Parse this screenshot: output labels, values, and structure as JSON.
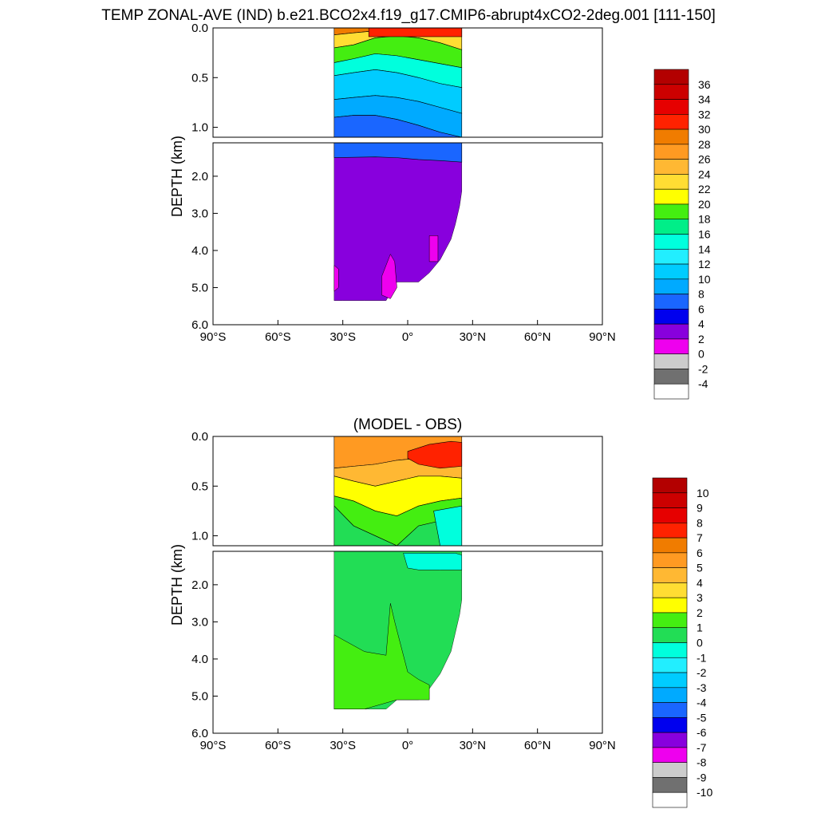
{
  "page_title": "TEMP ZONAL-AVE (IND) b.e21.BCO2x4.f19_g17.CMIP6-abrupt4xCO2-2deg.001 [111-150]",
  "chart_data": [
    {
      "type": "heatmap",
      "title": "",
      "ylabel": "DEPTH (km)",
      "xlabel": "",
      "xlim": [
        -90,
        90
      ],
      "ylim": [
        6.0,
        0.0
      ],
      "depth_break_km": 1.1,
      "x_ticks": [
        -90,
        -60,
        -30,
        0,
        30,
        60,
        90
      ],
      "x_tick_labels": [
        "90°S",
        "60°S",
        "30°S",
        "0°",
        "30°N",
        "60°N",
        "90°N"
      ],
      "y_ticks_upper": [
        0.0,
        0.5,
        1.0
      ],
      "y_ticks_upper_labels": [
        "0.0",
        "0.5",
        "1.0"
      ],
      "y_ticks_lower": [
        2.0,
        3.0,
        4.0,
        5.0,
        6.0
      ],
      "y_ticks_lower_labels": [
        "2.0",
        "3.0",
        "4.0",
        "5.0",
        "6.0"
      ],
      "data_lat_range": [
        -34,
        25
      ],
      "colorbar": {
        "labels": [
          "36",
          "34",
          "32",
          "30",
          "28",
          "26",
          "24",
          "22",
          "20",
          "18",
          "16",
          "14",
          "12",
          "10",
          "8",
          "6",
          "4",
          "2",
          "0",
          "-2",
          "-4"
        ],
        "colors": [
          "#b30000",
          "#cc0000",
          "#e60000",
          "#ff2200",
          "#f07c00",
          "#ff9a22",
          "#ffb833",
          "#ffdd33",
          "#ffff00",
          "#44ee11",
          "#00ee88",
          "#00ffdd",
          "#22eeff",
          "#00ccff",
          "#00aaff",
          "#1a66ff",
          "#0000ee",
          "#8800dd",
          "#ee00ee",
          "#cccccc",
          "#707070",
          "#ffffff"
        ]
      },
      "upper_bands": [
        {
          "value": 28,
          "surface": [
            0.0,
            0.0,
            0.0,
            0.0,
            0.0,
            0.0,
            0.0
          ],
          "deep": [
            0.07,
            0.05,
            0.03,
            0.02,
            0.02,
            0.03,
            0.04
          ]
        },
        {
          "value": 22,
          "surface": [
            0.07,
            0.05,
            0.03,
            0.02,
            0.02,
            0.03,
            0.04
          ],
          "deep": [
            0.2,
            0.17,
            0.1,
            0.08,
            0.1,
            0.15,
            0.22
          ]
        },
        {
          "value": 18,
          "surface": [
            0.2,
            0.17,
            0.1,
            0.08,
            0.1,
            0.15,
            0.22
          ],
          "deep": [
            0.35,
            0.31,
            0.26,
            0.28,
            0.32,
            0.36,
            0.4
          ]
        },
        {
          "value": 14,
          "surface": [
            0.35,
            0.31,
            0.26,
            0.28,
            0.32,
            0.36,
            0.4
          ],
          "deep": [
            0.48,
            0.45,
            0.42,
            0.45,
            0.5,
            0.56,
            0.6
          ]
        },
        {
          "value": 10,
          "surface": [
            0.48,
            0.45,
            0.42,
            0.45,
            0.5,
            0.56,
            0.6
          ],
          "deep": [
            0.72,
            0.7,
            0.68,
            0.7,
            0.74,
            0.8,
            0.86
          ]
        },
        {
          "value": 8,
          "surface": [
            0.72,
            0.7,
            0.68,
            0.7,
            0.74,
            0.8,
            0.86
          ],
          "deep": [
            0.9,
            0.88,
            0.88,
            0.92,
            0.98,
            1.05,
            1.1
          ]
        },
        {
          "value": 6,
          "surface": [
            0.9,
            0.88,
            0.88,
            0.92,
            0.98,
            1.05,
            1.1
          ],
          "deep": [
            1.1,
            1.1,
            1.1,
            1.1,
            1.1,
            1.1,
            1.1
          ]
        }
      ],
      "upper_band_lats": [
        -34,
        -25,
        -15,
        -5,
        5,
        15,
        25
      ],
      "surface_warm_patch": {
        "value": 30,
        "lat_range": [
          -18,
          25
        ],
        "depth_max_km": 0.04
      },
      "deep_fill": {
        "value": 2,
        "lat": [
          -34,
          -30,
          -20,
          -10,
          -5,
          0,
          5,
          10,
          15,
          20,
          22,
          24,
          25
        ],
        "bottom_km": [
          5.35,
          5.35,
          5.35,
          5.35,
          4.85,
          4.85,
          4.85,
          4.6,
          4.25,
          3.7,
          3.3,
          2.8,
          2.4
        ]
      },
      "deep_blue_layer": {
        "value": 6,
        "lat": [
          -34,
          -15,
          -5,
          5,
          15,
          25
        ],
        "bottom_km": [
          1.5,
          1.48,
          1.5,
          1.55,
          1.58,
          1.62
        ]
      },
      "cold_patches": [
        {
          "value": 0,
          "lat": [
            -34,
            -32,
            -32,
            -34
          ],
          "depth": [
            4.4,
            4.5,
            5.0,
            5.1
          ]
        },
        {
          "value": 0,
          "lat": [
            -8,
            -6,
            -5,
            -8,
            -12,
            -12
          ],
          "depth": [
            4.1,
            4.3,
            5.0,
            5.3,
            5.2,
            4.7
          ]
        },
        {
          "value": 0,
          "lat": [
            10,
            14,
            14,
            10
          ],
          "depth": [
            3.6,
            3.6,
            4.3,
            4.3
          ]
        }
      ]
    },
    {
      "type": "heatmap",
      "title": "(MODEL - OBS)",
      "ylabel": "DEPTH (km)",
      "xlabel": "",
      "xlim": [
        -90,
        90
      ],
      "ylim": [
        6.0,
        0.0
      ],
      "depth_break_km": 1.1,
      "x_ticks": [
        -90,
        -60,
        -30,
        0,
        30,
        60,
        90
      ],
      "x_tick_labels": [
        "90°S",
        "60°S",
        "30°S",
        "0°",
        "30°N",
        "60°N",
        "90°N"
      ],
      "y_ticks_upper": [
        0.0,
        0.5,
        1.0
      ],
      "y_ticks_upper_labels": [
        "0.0",
        "0.5",
        "1.0"
      ],
      "y_ticks_lower": [
        2.0,
        3.0,
        4.0,
        5.0,
        6.0
      ],
      "y_ticks_lower_labels": [
        "2.0",
        "3.0",
        "4.0",
        "5.0",
        "6.0"
      ],
      "data_lat_range": [
        -34,
        25
      ],
      "colorbar": {
        "labels": [
          "10",
          "9",
          "8",
          "7",
          "6",
          "5",
          "4",
          "3",
          "2",
          "1",
          "0",
          "-1",
          "-2",
          "-3",
          "-4",
          "-5",
          "-6",
          "-7",
          "-8",
          "-9",
          "-10"
        ],
        "colors": [
          "#b30000",
          "#cc0000",
          "#e60000",
          "#ff2200",
          "#f07c00",
          "#ff9a22",
          "#ffb833",
          "#ffdd33",
          "#ffff00",
          "#44ee11",
          "#22dd55",
          "#00ffdd",
          "#22eeff",
          "#00ccff",
          "#00aaff",
          "#1a66ff",
          "#0000ee",
          "#8800dd",
          "#ee00ee",
          "#cccccc",
          "#707070",
          "#ffffff"
        ]
      },
      "upper_bands": [
        {
          "value": 5.5,
          "surface": [
            0.0,
            0.0,
            0.0,
            0.0,
            0.0,
            0.0,
            0.0
          ],
          "deep": [
            0.32,
            0.3,
            0.28,
            0.24,
            0.22,
            0.22,
            0.24
          ]
        },
        {
          "value": 4.5,
          "surface": [
            0.32,
            0.3,
            0.28,
            0.24,
            0.22,
            0.22,
            0.24
          ],
          "deep": [
            0.4,
            0.45,
            0.5,
            0.45,
            0.4,
            0.4,
            0.42
          ]
        },
        {
          "value": 2.5,
          "surface": [
            0.4,
            0.45,
            0.5,
            0.45,
            0.4,
            0.4,
            0.42
          ],
          "deep": [
            0.6,
            0.65,
            0.75,
            0.8,
            0.7,
            0.65,
            0.62
          ]
        },
        {
          "value": 1.5,
          "surface": [
            0.6,
            0.65,
            0.75,
            0.8,
            0.7,
            0.65,
            0.62
          ],
          "deep": [
            0.7,
            0.9,
            1.0,
            1.1,
            0.9,
            0.85,
            0.85
          ]
        },
        {
          "value": 0.5,
          "surface": [
            0.7,
            0.9,
            1.0,
            1.1,
            0.9,
            0.85,
            0.85
          ],
          "deep": [
            1.1,
            1.1,
            1.1,
            1.1,
            1.1,
            1.1,
            1.1
          ]
        }
      ],
      "upper_band_lats": [
        -34,
        -25,
        -15,
        -5,
        5,
        15,
        25
      ],
      "warm_core": {
        "value": 7.5,
        "lat": [
          0,
          10,
          20,
          25,
          25,
          15,
          5,
          0
        ],
        "depth": [
          0.15,
          0.08,
          0.05,
          0.06,
          0.3,
          0.32,
          0.28,
          0.22
        ]
      },
      "cool_patch_upper": {
        "value": -0.5,
        "lat": [
          12,
          25,
          25,
          15
        ],
        "depth": [
          0.75,
          0.7,
          1.1,
          1.1
        ]
      },
      "deep_fill": {
        "value": 0.5,
        "lat": [
          -34,
          -30,
          -20,
          -10,
          -5,
          0,
          5,
          10,
          15,
          20,
          22,
          24,
          25
        ],
        "bottom_km": [
          5.35,
          5.35,
          5.35,
          5.35,
          5.1,
          5.1,
          5.1,
          4.8,
          4.4,
          3.8,
          3.3,
          2.8,
          2.4
        ]
      },
      "warm_deep_region": {
        "value": 1.5,
        "lat": [
          -34,
          -20,
          -10,
          -8,
          -6,
          0,
          5,
          10,
          10,
          -5,
          -20,
          -34
        ],
        "depth": [
          3.35,
          3.8,
          3.9,
          2.5,
          3.0,
          4.35,
          4.55,
          4.7,
          5.1,
          5.1,
          5.35,
          5.35
        ]
      },
      "cool_deep_patch": {
        "value": -0.5,
        "lat": [
          -2,
          5,
          15,
          22,
          25,
          25,
          15,
          5,
          0
        ],
        "depth": [
          1.15,
          1.15,
          1.15,
          1.15,
          1.2,
          1.6,
          1.6,
          1.6,
          1.55
        ]
      }
    }
  ]
}
